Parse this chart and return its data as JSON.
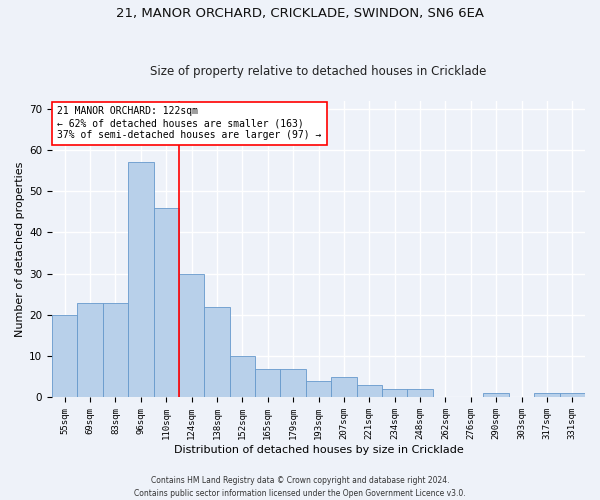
{
  "title1": "21, MANOR ORCHARD, CRICKLADE, SWINDON, SN6 6EA",
  "title2": "Size of property relative to detached houses in Cricklade",
  "xlabel": "Distribution of detached houses by size in Cricklade",
  "ylabel": "Number of detached properties",
  "categories": [
    "55sqm",
    "69sqm",
    "83sqm",
    "96sqm",
    "110sqm",
    "124sqm",
    "138sqm",
    "152sqm",
    "165sqm",
    "179sqm",
    "193sqm",
    "207sqm",
    "221sqm",
    "234sqm",
    "248sqm",
    "262sqm",
    "276sqm",
    "290sqm",
    "303sqm",
    "317sqm",
    "331sqm"
  ],
  "values": [
    20,
    23,
    23,
    57,
    46,
    30,
    22,
    10,
    7,
    7,
    4,
    5,
    3,
    2,
    2,
    0,
    0,
    1,
    0,
    1,
    1
  ],
  "bar_color": "#b8d0ea",
  "bar_edge_color": "#6699cc",
  "vline_x": 4.5,
  "vline_color": "red",
  "annotation_title": "21 MANOR ORCHARD: 122sqm",
  "annotation_line1": "← 62% of detached houses are smaller (163)",
  "annotation_line2": "37% of semi-detached houses are larger (97) →",
  "annotation_box_color": "white",
  "annotation_box_edge": "red",
  "ylim": [
    0,
    72
  ],
  "yticks": [
    0,
    10,
    20,
    30,
    40,
    50,
    60,
    70
  ],
  "footer1": "Contains HM Land Registry data © Crown copyright and database right 2024.",
  "footer2": "Contains public sector information licensed under the Open Government Licence v3.0.",
  "bg_color": "#eef2f9",
  "plot_bg_color": "#eef2f9",
  "grid_color": "#ffffff",
  "title1_fontsize": 9.5,
  "title2_fontsize": 8.5,
  "xlabel_fontsize": 8,
  "ylabel_fontsize": 8,
  "annotation_fontsize": 7,
  "footer_fontsize": 5.5
}
